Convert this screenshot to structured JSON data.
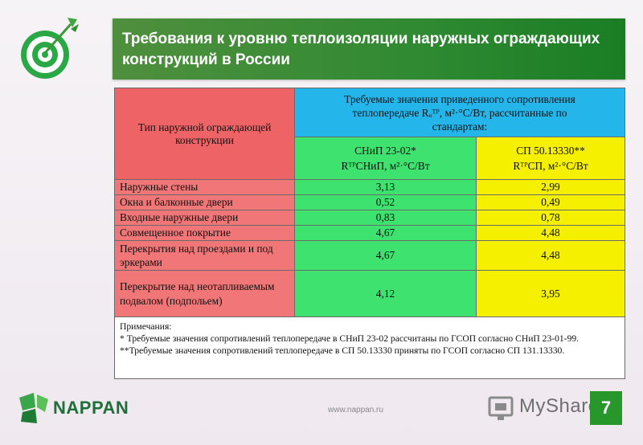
{
  "title": "Требования к уровню теплоизоляции наружных ограждающих конструкций в России",
  "table": {
    "type_header": "Тип наружной ограждающей конструкции",
    "req_header_line1": "Требуемые значения приведенного сопротивления",
    "req_header_line2": "теплопередаче Rₒᵀᴾ, м²·°С/Вт, рассчитанные по",
    "req_header_line3": "стандартам:",
    "col1_name": "СНиП 23-02*",
    "col1_unit": "RᵀᴾСНиП, м²·°С/Вт",
    "col2_name": "СП 50.13330**",
    "col2_unit": "RᵀᴾСП, м²·°С/Вт",
    "rows": [
      {
        "name": "Наружные стены",
        "snip": "3,13",
        "sp": "2,99"
      },
      {
        "name": "Окна и балконные двери",
        "snip": "0,52",
        "sp": "0,49"
      },
      {
        "name": "Входные наружные двери",
        "snip": "0,83",
        "sp": "0,78"
      },
      {
        "name": "Совмещенное покрытие",
        "snip": "4,67",
        "sp": "4,48"
      },
      {
        "name": "Перекрытия над проездами и под эркерами",
        "snip": "4,67",
        "sp": "4,48"
      },
      {
        "name": "Перекрытие над неотапливаемым подвалом (подпольем)",
        "snip": "4,12",
        "sp": "3,95"
      }
    ],
    "notes_title": "Примечания:",
    "note1": "* Требуемые значения сопротивлений теплопередаче в СНиП 23-02 рассчитаны по ГСОП согласно СНиП 23-01-99.",
    "note2": "**Требуемые значения сопротивлений теплопередаче в СП 50.13330 приняты по ГСОП согласно СП 131.13330."
  },
  "footer": {
    "brand": "NAPPAN",
    "url": "www.nappan.ru",
    "watermark": "MyShared",
    "page": "7"
  },
  "colors": {
    "title_bg": "#2f8a31",
    "red": "#f07677",
    "blue": "#24b6ea",
    "green": "#3de36e",
    "yellow": "#f4f000"
  }
}
